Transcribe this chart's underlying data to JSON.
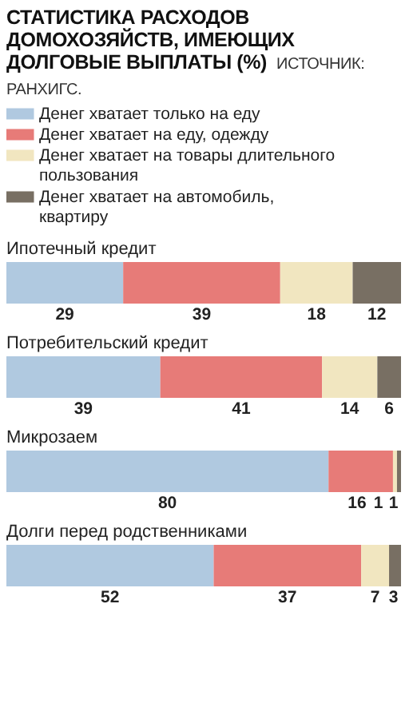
{
  "chart_data": [
    {
      "type": "bar",
      "title": "СТАТИСТИКА РАСХОДОВ ДОМОХОЗЯЙСТВ, ИМЕЮЩИХ ДОЛГОВЫЕ ВЫПЛАТЫ (%)",
      "annotations": [
        "ИСТОЧНИК: РАНХИГС."
      ],
      "orientation": "horizontal",
      "stacked": true,
      "data_labels": true,
      "legend": "top",
      "categories": [
        "Ипотечный кредит"
      ],
      "series": [
        {
          "name": "Денег хватает только на еду",
          "color": "#b0c9e0",
          "values": [
            29
          ]
        },
        {
          "name": "Денег хватает на еду, одежду",
          "color": "#e77b78",
          "values": [
            39
          ]
        },
        {
          "name": "Денег хватает на товары длительного пользования",
          "color": "#f1e6c0",
          "values": [
            18
          ]
        },
        {
          "name": "Денег хватает на автомобиль, квартиру",
          "color": "#786f63",
          "values": [
            12
          ]
        }
      ]
    },
    {
      "type": "bar",
      "orientation": "horizontal",
      "stacked": true,
      "data_labels": true,
      "categories": [
        "Потребительский кредит"
      ],
      "series": [
        {
          "color": "#b0c9e0",
          "values": [
            39
          ]
        },
        {
          "color": "#e77b78",
          "values": [
            41
          ]
        },
        {
          "color": "#f1e6c0",
          "values": [
            14
          ]
        },
        {
          "color": "#786f63",
          "values": [
            6
          ]
        }
      ]
    },
    {
      "type": "bar",
      "orientation": "horizontal",
      "stacked": true,
      "data_labels": true,
      "categories": [
        "Микрозаем"
      ],
      "series": [
        {
          "color": "#b0c9e0",
          "values": [
            80
          ]
        },
        {
          "color": "#e77b78",
          "values": [
            16
          ]
        },
        {
          "color": "#f1e6c0",
          "values": [
            1
          ]
        },
        {
          "color": "#786f63",
          "values": [
            1
          ]
        }
      ]
    },
    {
      "type": "bar",
      "orientation": "horizontal",
      "stacked": true,
      "data_labels": true,
      "categories": [
        "Долги перед родственниками"
      ],
      "series": [
        {
          "color": "#b0c9e0",
          "values": [
            52
          ]
        },
        {
          "color": "#e77b78",
          "values": [
            37
          ]
        },
        {
          "color": "#f1e6c0",
          "values": [
            7
          ]
        },
        {
          "color": "#786f63",
          "values": [
            3
          ]
        }
      ]
    }
  ]
}
